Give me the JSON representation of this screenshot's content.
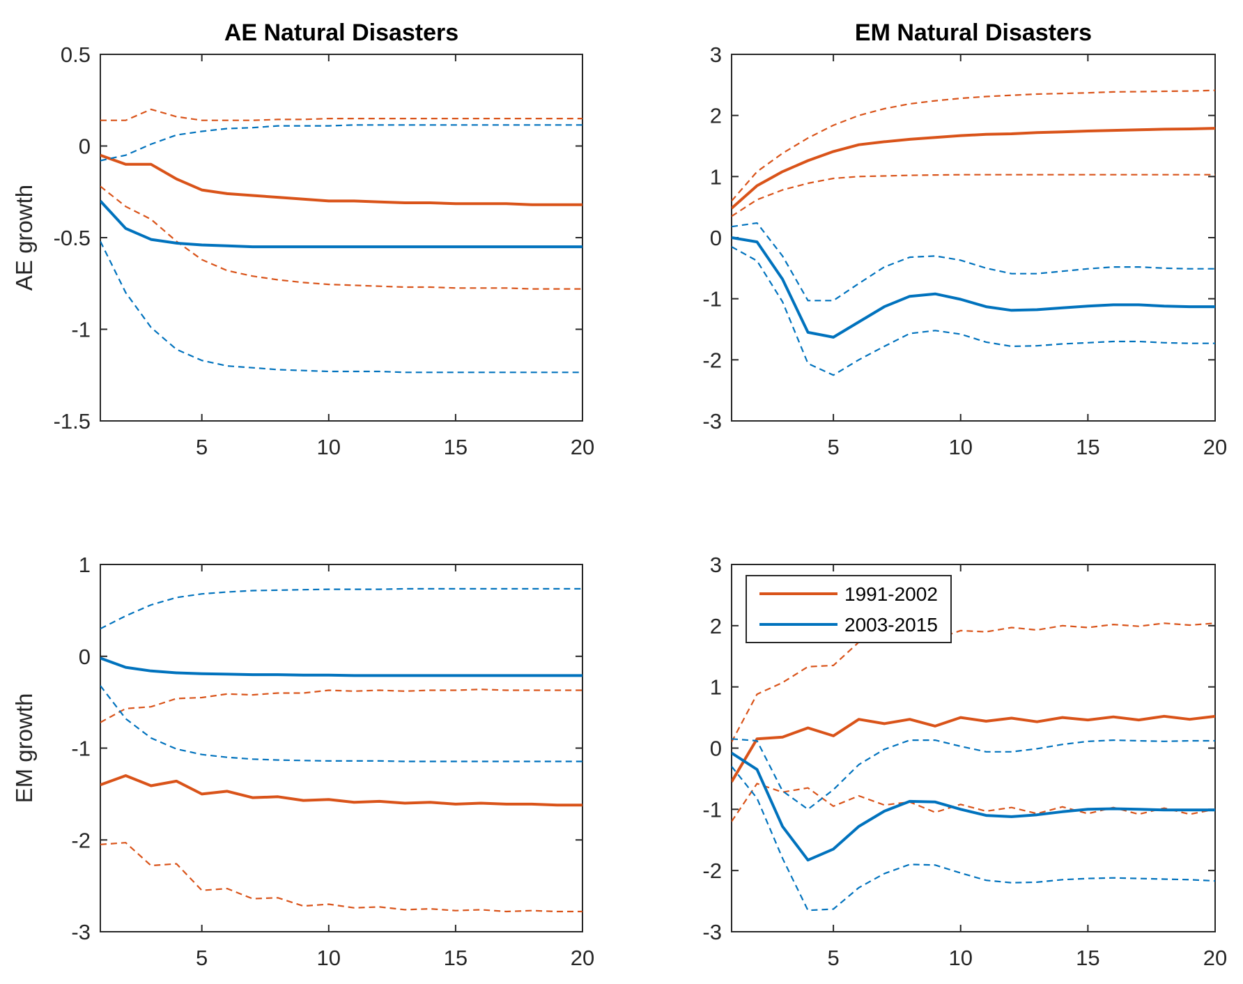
{
  "colors": {
    "series1": "#d95319",
    "series2": "#0072bd",
    "axis": "#262626"
  },
  "legend": {
    "entries": [
      "1991-2002",
      "2003-2015"
    ],
    "placement": "top-left"
  },
  "chart_data": [
    {
      "type": "line",
      "title": "AE Natural Disasters",
      "ylabel": "AE growth",
      "xlabel": "",
      "xlim": [
        1,
        20
      ],
      "ylim": [
        -1.5,
        0.5
      ],
      "xticks": [
        5,
        10,
        15,
        20
      ],
      "yticks": [
        "-1.5",
        "-1",
        "-0.5",
        "0",
        "0.5"
      ],
      "grid": false,
      "x": [
        1,
        2,
        3,
        4,
        5,
        6,
        7,
        8,
        9,
        10,
        11,
        12,
        13,
        14,
        15,
        16,
        17,
        18,
        19,
        20
      ],
      "series": [
        {
          "name": "1991-2002",
          "values": [
            -0.05,
            -0.1,
            -0.1,
            -0.18,
            -0.24,
            -0.26,
            -0.27,
            -0.28,
            -0.29,
            -0.3,
            -0.3,
            -0.305,
            -0.31,
            -0.31,
            -0.315,
            -0.315,
            -0.315,
            -0.32,
            -0.32,
            -0.32
          ],
          "lower": [
            -0.22,
            -0.33,
            -0.4,
            -0.52,
            -0.62,
            -0.68,
            -0.71,
            -0.73,
            -0.745,
            -0.755,
            -0.76,
            -0.765,
            -0.77,
            -0.77,
            -0.775,
            -0.775,
            -0.775,
            -0.78,
            -0.78,
            -0.78
          ],
          "upper": [
            0.14,
            0.14,
            0.2,
            0.16,
            0.14,
            0.14,
            0.14,
            0.145,
            0.145,
            0.15,
            0.15,
            0.15,
            0.15,
            0.15,
            0.15,
            0.15,
            0.15,
            0.15,
            0.15,
            0.15
          ]
        },
        {
          "name": "2003-2015",
          "values": [
            -0.3,
            -0.45,
            -0.51,
            -0.53,
            -0.54,
            -0.545,
            -0.55,
            -0.55,
            -0.55,
            -0.55,
            -0.55,
            -0.55,
            -0.55,
            -0.55,
            -0.55,
            -0.55,
            -0.55,
            -0.55,
            -0.55,
            -0.55
          ],
          "lower": [
            -0.52,
            -0.8,
            -0.99,
            -1.11,
            -1.17,
            -1.2,
            -1.21,
            -1.22,
            -1.225,
            -1.23,
            -1.23,
            -1.23,
            -1.235,
            -1.235,
            -1.235,
            -1.235,
            -1.235,
            -1.235,
            -1.235,
            -1.235
          ],
          "upper": [
            -0.08,
            -0.05,
            0.01,
            0.06,
            0.08,
            0.095,
            0.1,
            0.11,
            0.11,
            0.11,
            0.115,
            0.115,
            0.115,
            0.115,
            0.115,
            0.115,
            0.115,
            0.115,
            0.115,
            0.115
          ]
        }
      ]
    },
    {
      "type": "line",
      "title": "EM Natural Disasters",
      "ylabel": "",
      "xlabel": "",
      "xlim": [
        1,
        20
      ],
      "ylim": [
        -3,
        3
      ],
      "xticks": [
        5,
        10,
        15,
        20
      ],
      "yticks": [
        "-3",
        "-2",
        "-1",
        "0",
        "1",
        "2",
        "3"
      ],
      "grid": false,
      "x": [
        1,
        2,
        3,
        4,
        5,
        6,
        7,
        8,
        9,
        10,
        11,
        12,
        13,
        14,
        15,
        16,
        17,
        18,
        19,
        20
      ],
      "series": [
        {
          "name": "1991-2002",
          "values": [
            0.48,
            0.85,
            1.08,
            1.26,
            1.41,
            1.52,
            1.57,
            1.61,
            1.64,
            1.67,
            1.69,
            1.7,
            1.72,
            1.73,
            1.745,
            1.755,
            1.765,
            1.775,
            1.78,
            1.79
          ],
          "lower": [
            0.35,
            0.62,
            0.78,
            0.89,
            0.97,
            1.0,
            1.01,
            1.02,
            1.025,
            1.03,
            1.03,
            1.03,
            1.03,
            1.03,
            1.03,
            1.03,
            1.03,
            1.03,
            1.03,
            1.03
          ],
          "upper": [
            0.6,
            1.08,
            1.38,
            1.63,
            1.84,
            2.0,
            2.11,
            2.19,
            2.24,
            2.28,
            2.31,
            2.33,
            2.35,
            2.36,
            2.37,
            2.385,
            2.39,
            2.395,
            2.4,
            2.41
          ]
        },
        {
          "name": "2003-2015",
          "values": [
            0.0,
            -0.07,
            -0.68,
            -1.55,
            -1.63,
            -1.38,
            -1.13,
            -0.96,
            -0.92,
            -1.01,
            -1.13,
            -1.19,
            -1.18,
            -1.15,
            -1.12,
            -1.1,
            -1.1,
            -1.12,
            -1.13,
            -1.13
          ],
          "lower": [
            -0.15,
            -0.38,
            -1.05,
            -2.06,
            -2.25,
            -2.0,
            -1.78,
            -1.57,
            -1.52,
            -1.58,
            -1.71,
            -1.78,
            -1.77,
            -1.74,
            -1.72,
            -1.7,
            -1.7,
            -1.72,
            -1.73,
            -1.73
          ],
          "upper": [
            0.18,
            0.24,
            -0.3,
            -1.03,
            -1.03,
            -0.75,
            -0.48,
            -0.32,
            -0.3,
            -0.37,
            -0.5,
            -0.59,
            -0.59,
            -0.55,
            -0.51,
            -0.48,
            -0.48,
            -0.5,
            -0.51,
            -0.51
          ]
        }
      ]
    },
    {
      "type": "line",
      "title": "",
      "ylabel": "EM growth",
      "xlabel": "",
      "xlim": [
        1,
        20
      ],
      "ylim": [
        -3,
        1
      ],
      "xticks": [
        5,
        10,
        15,
        20
      ],
      "yticks": [
        "-3",
        "-2",
        "-1",
        "0",
        "1"
      ],
      "grid": false,
      "x": [
        1,
        2,
        3,
        4,
        5,
        6,
        7,
        8,
        9,
        10,
        11,
        12,
        13,
        14,
        15,
        16,
        17,
        18,
        19,
        20
      ],
      "series": [
        {
          "name": "1991-2002",
          "values": [
            -1.4,
            -1.3,
            -1.41,
            -1.36,
            -1.5,
            -1.47,
            -1.54,
            -1.53,
            -1.57,
            -1.56,
            -1.59,
            -1.58,
            -1.6,
            -1.59,
            -1.61,
            -1.6,
            -1.61,
            -1.61,
            -1.62,
            -1.62
          ],
          "lower": [
            -2.05,
            -2.03,
            -2.28,
            -2.26,
            -2.55,
            -2.53,
            -2.64,
            -2.63,
            -2.72,
            -2.7,
            -2.74,
            -2.73,
            -2.76,
            -2.75,
            -2.77,
            -2.76,
            -2.78,
            -2.77,
            -2.78,
            -2.78
          ],
          "upper": [
            -0.72,
            -0.57,
            -0.55,
            -0.46,
            -0.45,
            -0.41,
            -0.42,
            -0.4,
            -0.4,
            -0.37,
            -0.38,
            -0.37,
            -0.38,
            -0.37,
            -0.37,
            -0.36,
            -0.37,
            -0.37,
            -0.37,
            -0.37
          ]
        },
        {
          "name": "2003-2015",
          "values": [
            -0.02,
            -0.12,
            -0.16,
            -0.18,
            -0.19,
            -0.195,
            -0.2,
            -0.2,
            -0.205,
            -0.205,
            -0.21,
            -0.21,
            -0.21,
            -0.21,
            -0.21,
            -0.21,
            -0.21,
            -0.21,
            -0.21,
            -0.21
          ],
          "lower": [
            -0.32,
            -0.68,
            -0.89,
            -1.01,
            -1.07,
            -1.1,
            -1.12,
            -1.13,
            -1.135,
            -1.14,
            -1.14,
            -1.14,
            -1.145,
            -1.145,
            -1.145,
            -1.145,
            -1.145,
            -1.145,
            -1.145,
            -1.145
          ],
          "upper": [
            0.3,
            0.44,
            0.56,
            0.64,
            0.68,
            0.7,
            0.715,
            0.72,
            0.725,
            0.73,
            0.73,
            0.73,
            0.735,
            0.735,
            0.735,
            0.735,
            0.735,
            0.735,
            0.735,
            0.735
          ]
        }
      ]
    },
    {
      "type": "line",
      "title": "",
      "ylabel": "",
      "xlabel": "",
      "xlim": [
        1,
        20
      ],
      "ylim": [
        -3,
        3
      ],
      "xticks": [
        5,
        10,
        15,
        20
      ],
      "yticks": [
        "-3",
        "-2",
        "-1",
        "0",
        "1",
        "2",
        "3"
      ],
      "grid": false,
      "legend": true,
      "x": [
        1,
        2,
        3,
        4,
        5,
        6,
        7,
        8,
        9,
        10,
        11,
        12,
        13,
        14,
        15,
        16,
        17,
        18,
        19,
        20
      ],
      "series": [
        {
          "name": "1991-2002",
          "values": [
            -0.55,
            0.15,
            0.18,
            0.33,
            0.2,
            0.47,
            0.4,
            0.47,
            0.36,
            0.5,
            0.44,
            0.49,
            0.43,
            0.5,
            0.46,
            0.51,
            0.46,
            0.52,
            0.47,
            0.52
          ],
          "lower": [
            -1.2,
            -0.58,
            -0.72,
            -0.65,
            -0.95,
            -0.78,
            -0.93,
            -0.88,
            -1.05,
            -0.92,
            -1.03,
            -0.97,
            -1.07,
            -0.96,
            -1.07,
            -0.97,
            -1.08,
            -0.98,
            -1.08,
            -1.0
          ],
          "upper": [
            0.1,
            0.88,
            1.07,
            1.33,
            1.35,
            1.73,
            1.73,
            1.83,
            1.78,
            1.92,
            1.9,
            1.97,
            1.93,
            2.0,
            1.97,
            2.02,
            1.99,
            2.04,
            2.01,
            2.04
          ]
        },
        {
          "name": "2003-2015",
          "values": [
            -0.08,
            -0.35,
            -1.28,
            -1.83,
            -1.65,
            -1.28,
            -1.03,
            -0.87,
            -0.88,
            -1.0,
            -1.1,
            -1.12,
            -1.09,
            -1.04,
            -1.0,
            -0.99,
            -1.0,
            -1.01,
            -1.01,
            -1.01
          ],
          "lower": [
            -0.3,
            -0.82,
            -1.8,
            -2.65,
            -2.63,
            -2.28,
            -2.05,
            -1.9,
            -1.91,
            -2.04,
            -2.16,
            -2.2,
            -2.19,
            -2.15,
            -2.13,
            -2.12,
            -2.13,
            -2.14,
            -2.15,
            -2.17
          ],
          "upper": [
            0.15,
            0.12,
            -0.7,
            -1.0,
            -0.68,
            -0.27,
            -0.02,
            0.13,
            0.13,
            0.03,
            -0.06,
            -0.06,
            -0.01,
            0.06,
            0.11,
            0.13,
            0.12,
            0.11,
            0.12,
            0.12
          ]
        }
      ]
    }
  ]
}
